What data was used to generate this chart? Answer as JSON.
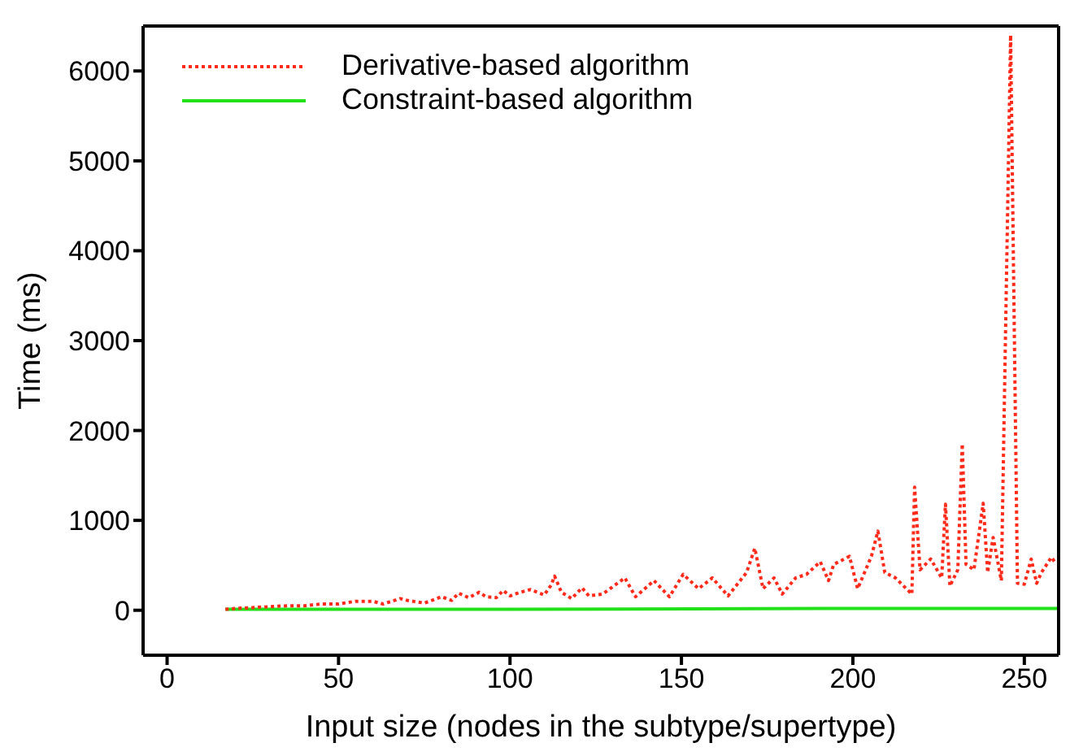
{
  "chart_data": {
    "type": "line",
    "xlabel": "Input size (nodes in the subtype/supertype)",
    "ylabel": "Time (ms)",
    "xlim": [
      -7,
      260
    ],
    "ylim": [
      -500,
      6500
    ],
    "xticks": [
      0,
      50,
      100,
      150,
      200,
      250
    ],
    "yticks": [
      0,
      1000,
      2000,
      3000,
      4000,
      5000,
      6000
    ],
    "legend": "top left",
    "marker": "none",
    "series": [
      {
        "name": "Derivative-based algorithm",
        "color": "#ff2a1a",
        "line_style": "dotted",
        "x": [
          17,
          20,
          25,
          30,
          35,
          40,
          45,
          50,
          55,
          60,
          63,
          68,
          70,
          75,
          78,
          80,
          83,
          85,
          88,
          91,
          93,
          96,
          98,
          100,
          103,
          106,
          110,
          112,
          113,
          115,
          118,
          121,
          123,
          127,
          133.5,
          136.6,
          142,
          146.5,
          150.5,
          155,
          159,
          163.6,
          169,
          171.4,
          173.8,
          177,
          179.4,
          183.3,
          186.5,
          190.5,
          192.9,
          194.4,
          199,
          201.4,
          205.4,
          207.3,
          209.3,
          212.4,
          217.2,
          218,
          219.6,
          222.7,
          225.9,
          227,
          228.3,
          230.6,
          231.9,
          233,
          235.3,
          238,
          239.3,
          240.9,
          243.3,
          246,
          248,
          250,
          252,
          253.6,
          255,
          257.9,
          259
        ],
        "values": [
          10,
          20,
          30,
          40,
          50,
          50,
          70,
          70,
          100,
          100,
          70,
          130,
          110,
          80,
          120,
          150,
          110,
          190,
          140,
          200,
          150,
          140,
          220,
          160,
          200,
          230,
          170,
          280,
          380,
          200,
          130,
          250,
          160,
          180,
          360,
          150,
          330,
          150,
          400,
          240,
          360,
          160,
          420,
          690,
          240,
          360,
          180,
          360,
          400,
          540,
          330,
          510,
          600,
          240,
          600,
          880,
          420,
          360,
          180,
          1370,
          450,
          570,
          360,
          1180,
          270,
          450,
          1850,
          510,
          450,
          1190,
          420,
          810,
          330,
          6400,
          300,
          290,
          570,
          300,
          420,
          590,
          530
        ]
      },
      {
        "name": "Constraint-based algorithm",
        "color": "#22e01a",
        "line_style": "solid",
        "x": [
          17,
          100,
          200,
          260
        ],
        "values": [
          10,
          10,
          20,
          20
        ]
      }
    ]
  }
}
